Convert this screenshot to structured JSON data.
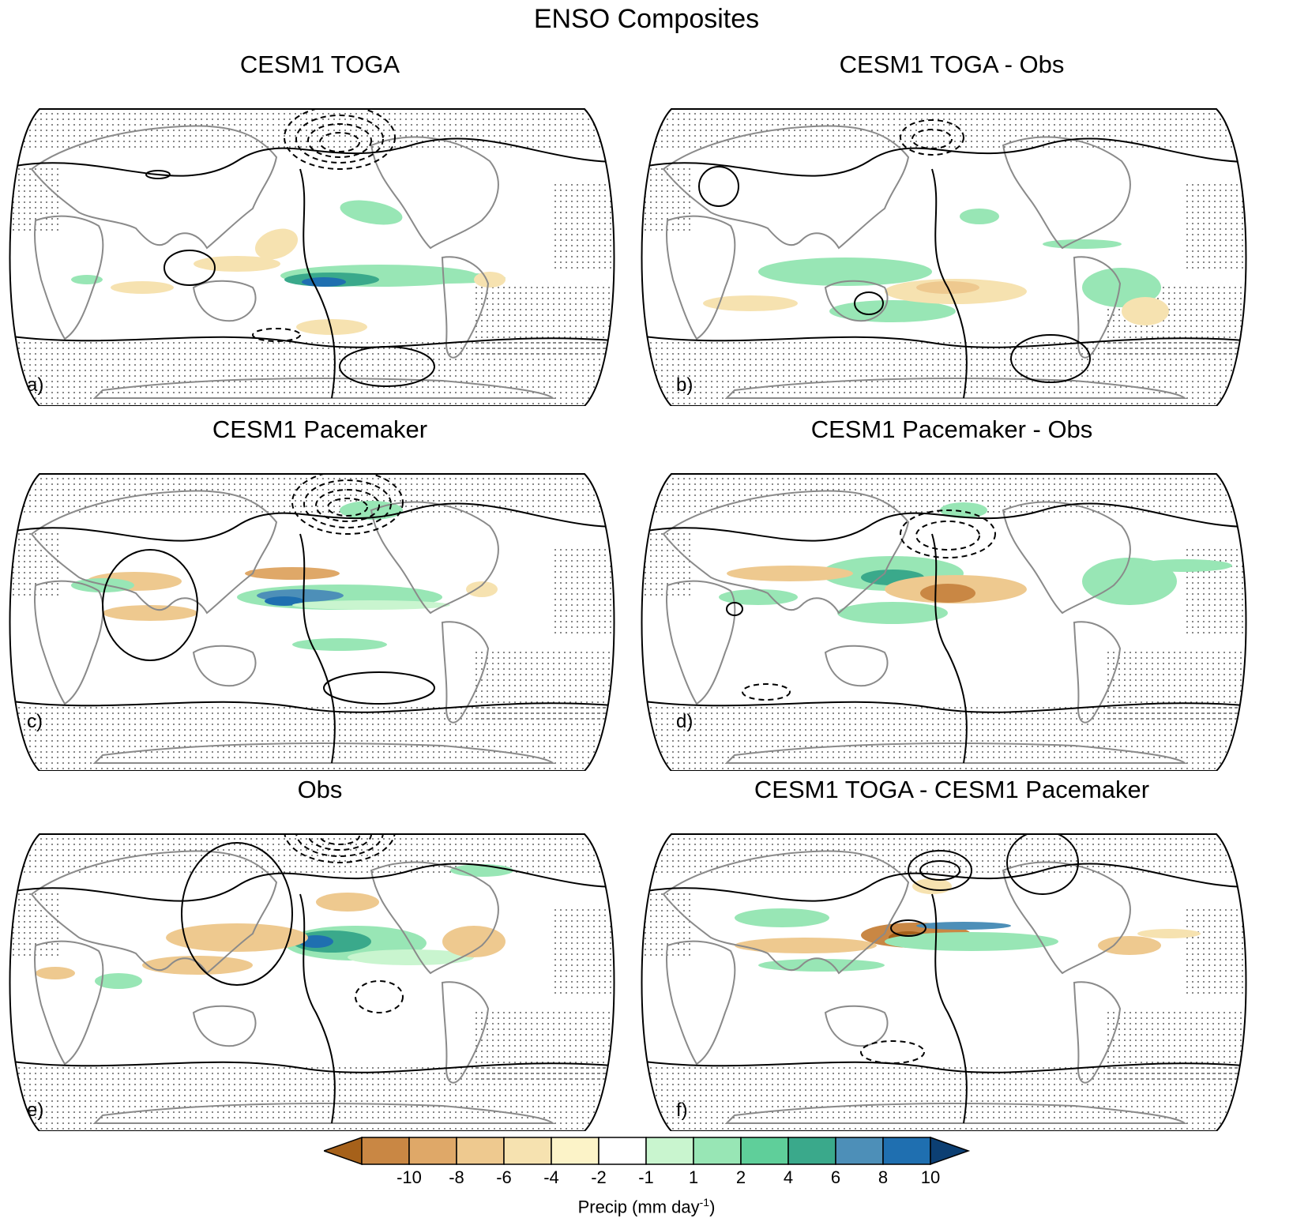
{
  "figure": {
    "title": "ENSO Composites"
  },
  "panels": [
    {
      "id": "a",
      "title": "CESM1 TOGA",
      "letter": "a)"
    },
    {
      "id": "b",
      "title": "CESM1 TOGA - Obs",
      "letter": "b)"
    },
    {
      "id": "c",
      "title": "CESM1 Pacemaker",
      "letter": "c)"
    },
    {
      "id": "d",
      "title": "CESM1 Pacemaker - Obs",
      "letter": "d)"
    },
    {
      "id": "e",
      "title": "Obs",
      "letter": "e)"
    },
    {
      "id": "f",
      "title": "CESM1 TOGA - CESM1 Pacemaker",
      "letter": "f)"
    }
  ],
  "colorbar": {
    "title_main": "Precip (mm day",
    "title_sup": "-1",
    "title_end": ")",
    "ticks": [
      "-10",
      "-8",
      "-6",
      "-4",
      "-2",
      "-1",
      "1",
      "2",
      "4",
      "6",
      "8",
      "10"
    ],
    "colors": [
      "#a6611a",
      "#c98744",
      "#dfa868",
      "#eec98f",
      "#f6e2b0",
      "#fcf3c8",
      "#ffffff",
      "#c9f5cf",
      "#98e6b5",
      "#5fcf9a",
      "#3aa98b",
      "#4d8fb8",
      "#1f6fb0",
      "#0c3f73"
    ]
  }
}
